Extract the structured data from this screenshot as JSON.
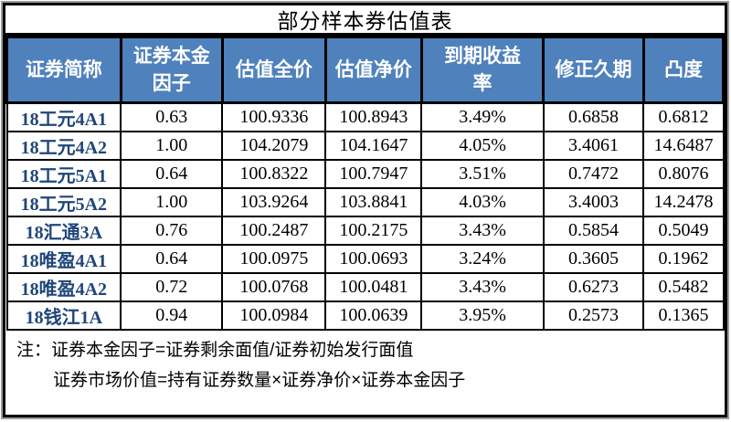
{
  "title": "部分样本券估值表",
  "table": {
    "columns": [
      "证券简称",
      "证券本金\n因子",
      "估值全价",
      "估值净价",
      "到期收益\n率",
      "修正久期",
      "凸度"
    ],
    "rows": [
      {
        "name": "18工元4A1",
        "factor": "0.63",
        "full": "100.9336",
        "net": "100.8943",
        "ytm": "3.49%",
        "duration": "0.6858",
        "convexity": "0.6812"
      },
      {
        "name": "18工元4A2",
        "factor": "1.00",
        "full": "104.2079",
        "net": "104.1647",
        "ytm": "4.05%",
        "duration": "3.4061",
        "convexity": "14.6487"
      },
      {
        "name": "18工元5A1",
        "factor": "0.64",
        "full": "100.8322",
        "net": "100.7947",
        "ytm": "3.51%",
        "duration": "0.7472",
        "convexity": "0.8076"
      },
      {
        "name": "18工元5A2",
        "factor": "1.00",
        "full": "103.9264",
        "net": "103.8841",
        "ytm": "4.03%",
        "duration": "3.4003",
        "convexity": "14.2478"
      },
      {
        "name": "18汇通3A",
        "factor": "0.76",
        "full": "100.2487",
        "net": "100.2175",
        "ytm": "3.43%",
        "duration": "0.5854",
        "convexity": "0.5049"
      },
      {
        "name": "18唯盈4A1",
        "factor": "0.64",
        "full": "100.0975",
        "net": "100.0693",
        "ytm": "3.24%",
        "duration": "0.3605",
        "convexity": "0.1962"
      },
      {
        "name": "18唯盈4A2",
        "factor": "0.72",
        "full": "100.0768",
        "net": "100.0481",
        "ytm": "3.43%",
        "duration": "0.6273",
        "convexity": "0.5482"
      },
      {
        "name": "18钱江1A",
        "factor": "0.94",
        "full": "100.0984",
        "net": "100.0639",
        "ytm": "3.95%",
        "duration": "0.2573",
        "convexity": "0.1365"
      }
    ]
  },
  "notes": {
    "prefix": "注：",
    "line1": "证券本金因子=证券剩余面值/证券初始发行面值",
    "line2": "证券市场价值=持有证券数量×证券净价×证券本金因子"
  },
  "colors": {
    "header_bg": "#4f81bd",
    "header_text": "#ffffff",
    "bond_name_text": "#1f4679",
    "border": "#000000"
  }
}
